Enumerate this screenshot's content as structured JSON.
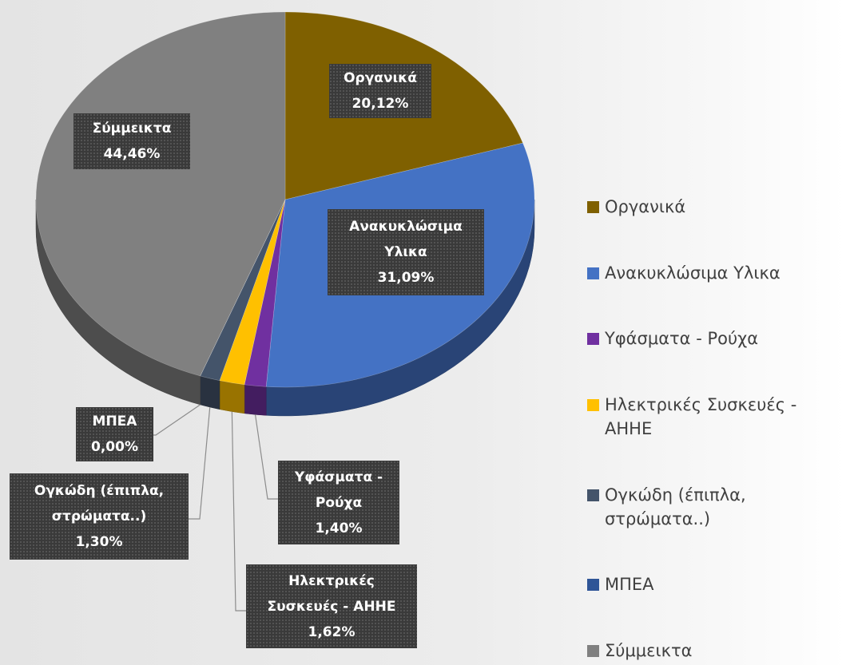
{
  "chart_data": {
    "type": "pie",
    "categories": [
      "Οργανικά",
      "Ανακυκλώσιμα Υλικα",
      "Υφάσματα - Ρούχα",
      "Ηλεκτρικές Συσκευές - ΑΗΗΕ",
      "Ογκώδη (έπιπλα, στρώματα..)",
      "ΜΠΕΑ",
      "Σύμμεικτα"
    ],
    "values": [
      20.12,
      31.09,
      1.4,
      1.62,
      1.3,
      0.0,
      44.46
    ],
    "value_labels": [
      "20,12%",
      "31,09%",
      "1,40%",
      "1,62%",
      "1,30%",
      "0,00%",
      "44,46%"
    ],
    "colors": [
      "#7f6000",
      "#4472c4",
      "#7030a0",
      "#ffc000",
      "#44546a",
      "#2f5597",
      "#808080"
    ],
    "legend": "right"
  }
}
